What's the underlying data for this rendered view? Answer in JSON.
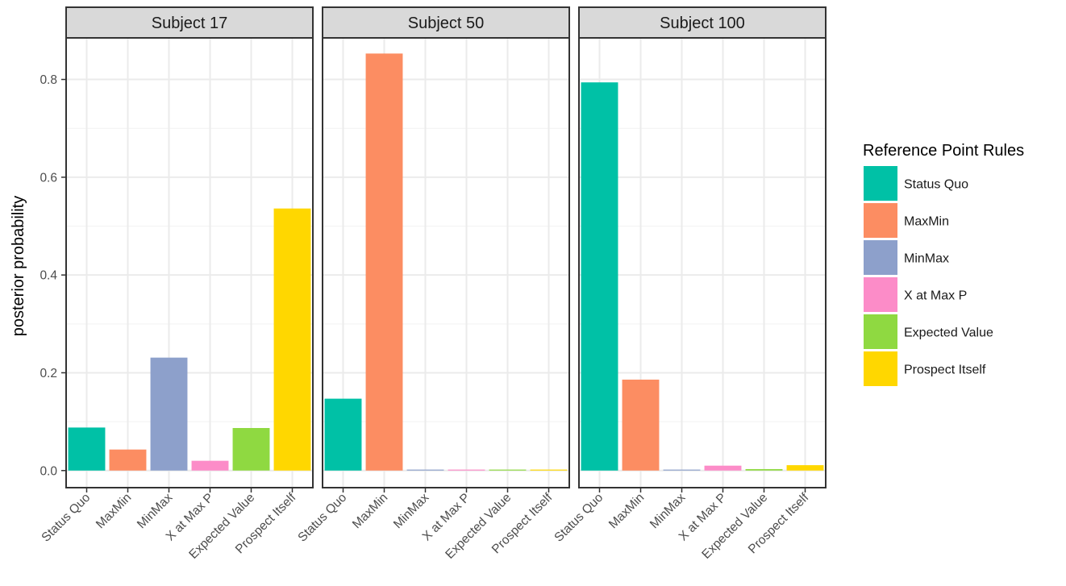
{
  "chart_data": {
    "type": "bar",
    "layout": "faceted",
    "ylabel": "posterior probability",
    "xlabel": "",
    "ylim": [
      -0.035,
      0.885
    ],
    "yticks": [
      0.0,
      0.2,
      0.4,
      0.6,
      0.8
    ],
    "ytick_labels": [
      "0.0",
      "0.2",
      "0.4",
      "0.6",
      "0.8"
    ],
    "grid": true,
    "legend_position": "right",
    "legend_title": "Reference Point Rules",
    "categories": [
      "Status Quo",
      "MaxMin",
      "MinMax",
      "X at Max P",
      "Expected Value",
      "Prospect Itself"
    ],
    "colors": [
      "#00c1a6",
      "#fc8d62",
      "#8da0cb",
      "#fc8cc8",
      "#8fd941",
      "#ffd700"
    ],
    "facets": [
      {
        "title": "Subject  17",
        "values": [
          0.088,
          0.043,
          0.231,
          0.02,
          0.087,
          0.536
        ]
      },
      {
        "title": "Subject  50",
        "values": [
          0.147,
          0.853,
          0.001,
          0.001,
          0.0,
          0.001
        ]
      },
      {
        "title": "Subject  100",
        "values": [
          0.794,
          0.186,
          0.001,
          0.01,
          0.003,
          0.011
        ]
      }
    ]
  }
}
